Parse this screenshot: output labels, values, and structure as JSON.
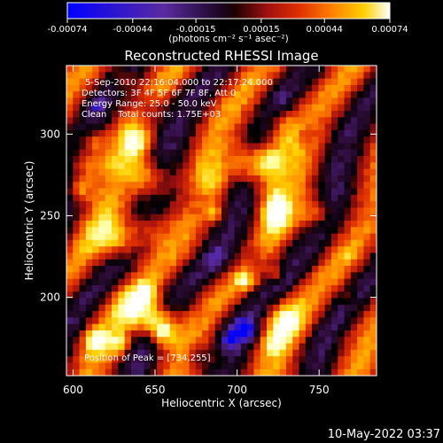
{
  "colorbar": {
    "tick_labels": [
      "-0.00074",
      "-0.00044",
      "-0.00015",
      "0.00015",
      "0.00044",
      "0.00074"
    ],
    "tick_values": [
      -0.00074,
      -0.00044,
      -0.00015,
      0.00015,
      0.00044,
      0.00074
    ],
    "units": "(photons cm⁻² s⁻¹ asec⁻²)"
  },
  "chart_data": {
    "type": "heatmap",
    "title": "Reconstructed RHESSI Image",
    "xlabel": "Heliocentric X (arcsec)",
    "ylabel": "Heliocentric Y (arcsec)",
    "xlim": [
      596,
      785
    ],
    "ylim": [
      152,
      342
    ],
    "xticks": [
      600,
      650,
      700,
      750
    ],
    "yticks": [
      200,
      250,
      300
    ],
    "colorscale": [
      "#0000ff",
      "#5a2aa0",
      "#2a0a30",
      "#000000",
      "#a01010",
      "#e03000",
      "#ff8000",
      "#ffd000",
      "#ffffa0",
      "#ffffff"
    ],
    "peak": [
      734,
      255
    ],
    "info_lines": [
      "5-Sep-2010 22:16:04.000 to 22:17:24.000",
      "Detectors: 3F 4F 5F 6F 7F 8F, Att 0",
      "Energy Range: 25.0 - 50.0 keV",
      "Clean    Total counts: 1.75E+03"
    ],
    "peak_label": "Position of Peak = [734,255]"
  },
  "timestamp": "10-May-2022 03:37"
}
